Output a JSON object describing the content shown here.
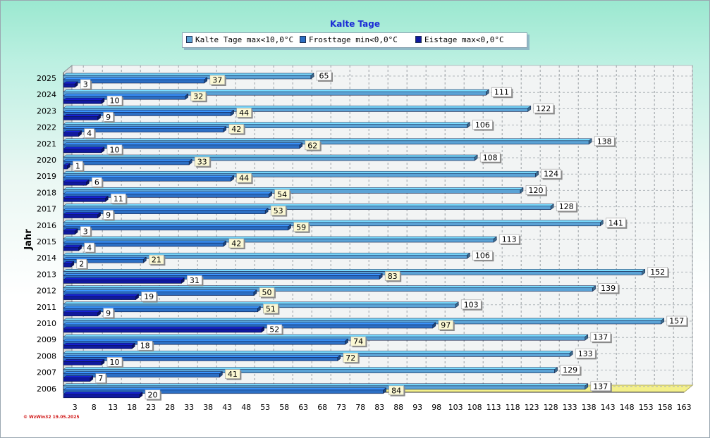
{
  "chart_data": {
    "type": "bar",
    "orientation": "horizontal",
    "title": "Kalte Tage",
    "ylabel": "Jahr",
    "xlabel": "",
    "categories": [
      "2025",
      "2024",
      "2023",
      "2022",
      "2021",
      "2020",
      "2019",
      "2018",
      "2017",
      "2016",
      "2015",
      "2014",
      "2013",
      "2012",
      "2011",
      "2010",
      "2009",
      "2008",
      "2007",
      "2006"
    ],
    "series": [
      {
        "name": "Kalte Tage max<10,0°C",
        "color": "#5ba3d6",
        "values": [
          65,
          111,
          122,
          106,
          138,
          108,
          124,
          120,
          128,
          141,
          113,
          106,
          152,
          139,
          103,
          157,
          137,
          133,
          129,
          137
        ]
      },
      {
        "name": "Frosttage min<0,0°C",
        "color": "#2c6fc4",
        "values": [
          37,
          32,
          44,
          42,
          62,
          33,
          44,
          54,
          53,
          59,
          42,
          21,
          83,
          50,
          51,
          97,
          74,
          72,
          41,
          84
        ]
      },
      {
        "name": "Eistage max<0,0°C",
        "color": "#10199e",
        "values": [
          3,
          10,
          9,
          4,
          10,
          1,
          6,
          11,
          9,
          3,
          4,
          2,
          31,
          19,
          9,
          52,
          18,
          10,
          7,
          20
        ]
      }
    ],
    "xticks": [
      3,
      8,
      13,
      18,
      23,
      28,
      33,
      38,
      43,
      48,
      53,
      58,
      63,
      68,
      73,
      78,
      83,
      88,
      93,
      98,
      103,
      108,
      113,
      118,
      123,
      128,
      133,
      138,
      143,
      148,
      153,
      158,
      163
    ],
    "xlim": [
      0,
      163
    ],
    "grid": true,
    "legend_position": "top"
  },
  "watermark": "© WzWin32  19.05.2025"
}
